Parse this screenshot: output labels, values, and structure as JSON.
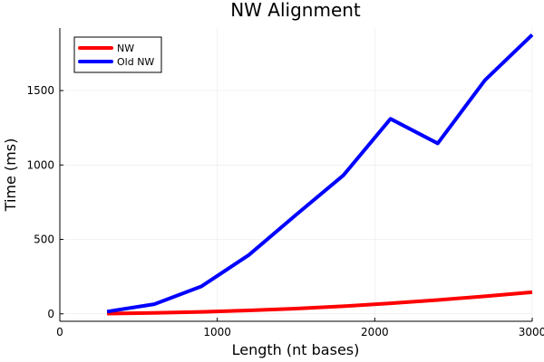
{
  "chart_data": {
    "type": "line",
    "title": "NW Alignment",
    "xlabel": "Length (nt bases)",
    "ylabel": "Time (ms)",
    "xlim": [
      0,
      3000
    ],
    "ylim": [
      -50,
      1920
    ],
    "xticks": [
      0,
      1000,
      2000,
      3000
    ],
    "yticks": [
      0,
      500,
      1000,
      1500
    ],
    "grid": true,
    "legend_position": "top-left",
    "series": [
      {
        "name": "NW",
        "color": "#ff0000",
        "x": [
          300,
          600,
          900,
          1200,
          1500,
          1800,
          2100,
          2400,
          2700,
          3000
        ],
        "y": [
          2,
          6,
          13,
          23,
          35,
          51,
          71,
          93,
          118,
          145
        ]
      },
      {
        "name": "Old NW",
        "color": "#0000ff",
        "x": [
          300,
          600,
          900,
          1200,
          1500,
          1800,
          2100,
          2400,
          2700,
          3000
        ],
        "y": [
          15,
          65,
          185,
          395,
          665,
          930,
          1310,
          1145,
          1570,
          1875
        ]
      }
    ]
  }
}
